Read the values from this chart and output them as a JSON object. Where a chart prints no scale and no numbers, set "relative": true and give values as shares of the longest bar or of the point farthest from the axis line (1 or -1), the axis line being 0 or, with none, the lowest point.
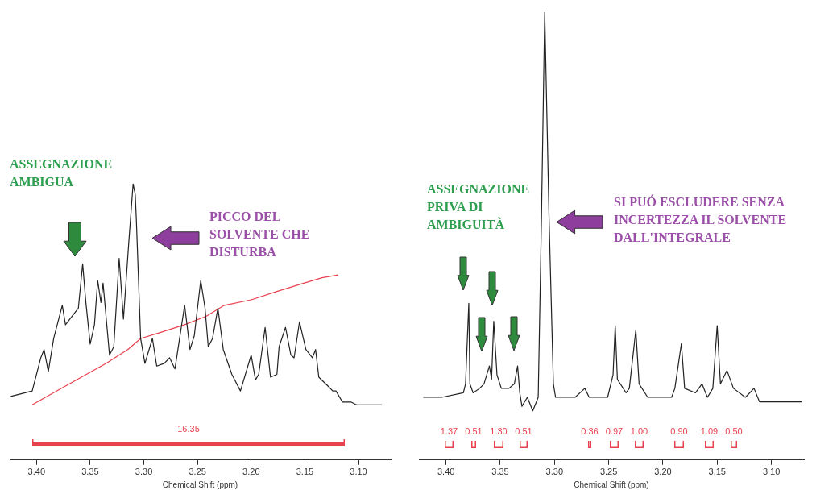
{
  "chart_data": [
    {
      "type": "line",
      "relative": true,
      "xlabel": "Chemical Shift (ppm)",
      "xlim": [
        3.425,
        3.07
      ],
      "xticks": [
        {
          "value": 3.4,
          "label": "3.40"
        },
        {
          "value": 3.35,
          "label": "3.35"
        },
        {
          "value": 3.3,
          "label": "3.30"
        },
        {
          "value": 3.25,
          "label": "3.25"
        },
        {
          "value": 3.2,
          "label": "3.20"
        },
        {
          "value": 3.15,
          "label": "3.15"
        },
        {
          "value": 3.1,
          "label": "3.10"
        }
      ],
      "grid": false,
      "legend": false,
      "marker": "none",
      "annotations": [
        "ASSEGNAZIONE\nAMBIGUA",
        "PICCO DEL\nSOLVENTE CHE\nDISTURBA",
        "16.35"
      ],
      "series": [
        {
          "color": "#222222",
          "x": [
            3.424,
            3.404,
            3.396,
            3.393,
            3.389,
            3.384,
            3.376,
            3.373,
            3.367,
            3.361,
            3.357,
            3.354,
            3.35,
            3.346,
            3.343,
            3.34,
            3.338,
            3.332,
            3.328,
            3.323,
            3.319,
            3.314,
            3.31,
            3.308,
            3.307,
            3.303,
            3.299,
            3.292,
            3.288,
            3.281,
            3.276,
            3.271,
            3.262,
            3.257,
            3.253,
            3.247,
            3.243,
            3.24,
            3.236,
            3.231,
            3.226,
            3.218,
            3.21,
            3.2,
            3.196,
            3.193,
            3.187,
            3.182,
            3.176,
            3.174,
            3.168,
            3.163,
            3.16,
            3.155,
            3.149,
            3.143,
            3.14,
            3.137,
            3.129,
            3.124,
            3.121,
            3.115,
            3.107,
            3.102,
            3.078
          ],
          "values": [
            0.23,
            0.25,
            0.37,
            0.4,
            0.32,
            0.44,
            0.56,
            0.49,
            0.52,
            0.55,
            0.71,
            0.57,
            0.42,
            0.49,
            0.65,
            0.57,
            0.64,
            0.38,
            0.41,
            0.73,
            0.51,
            0.79,
            1,
            0.96,
            0.87,
            0.44,
            0.35,
            0.44,
            0.34,
            0.35,
            0.37,
            0.33,
            0.56,
            0.4,
            0.45,
            0.65,
            0.55,
            0.41,
            0.44,
            0.55,
            0.4,
            0.31,
            0.25,
            0.38,
            0.29,
            0.31,
            0.48,
            0.3,
            0.31,
            0.41,
            0.48,
            0.38,
            0.37,
            0.5,
            0.4,
            0.37,
            0.4,
            0.3,
            0.27,
            0.25,
            0.25,
            0.21,
            0.21,
            0.2,
            0.2
          ]
        },
        {
          "color": "#e8414f",
          "x": [
            3.404,
            3.372,
            3.335,
            3.315,
            3.303,
            3.286,
            3.262,
            3.242,
            3.225,
            3.2,
            3.176,
            3.151,
            3.134,
            3.119
          ],
          "values": [
            0.2,
            0.27,
            0.35,
            0.4,
            0.44,
            0.46,
            0.49,
            0.52,
            0.56,
            0.58,
            0.61,
            0.64,
            0.66,
            0.67
          ]
        }
      ]
    },
    {
      "type": "line",
      "relative": true,
      "xlabel": "Chemical Shift (ppm)",
      "xlim": [
        3.425,
        3.07
      ],
      "xticks": [
        {
          "value": 3.4,
          "label": "3.40"
        },
        {
          "value": 3.35,
          "label": "3.35"
        },
        {
          "value": 3.3,
          "label": "3.30"
        },
        {
          "value": 3.25,
          "label": "3.25"
        },
        {
          "value": 3.2,
          "label": "3.20"
        },
        {
          "value": 3.15,
          "label": "3.15"
        },
        {
          "value": 3.1,
          "label": "3.10"
        }
      ],
      "grid": false,
      "legend": false,
      "marker": "none",
      "annotations": [
        "ASSEGNAZIONE\nPRIVA DI\nAMBIGUITÀ",
        "SI PUÓ ESCLUDERE SENZA\nINCERTEZZA IL SOLVENTE\nDALL'INTEGRALE",
        "1.37",
        "0.51",
        "1.30",
        "0.51",
        "0.36",
        "0.97",
        "1.00",
        "0.90",
        "1.09",
        "0.50"
      ],
      "series": [
        {
          "color": "#222222",
          "x": [
            3.421,
            3.404,
            3.384,
            3.382,
            3.379,
            3.378,
            3.375,
            3.369,
            3.365,
            3.36,
            3.358,
            3.356,
            3.353,
            3.349,
            3.342,
            3.337,
            3.334,
            3.332,
            3.33,
            3.325,
            3.32,
            3.315,
            3.312,
            3.309,
            3.305,
            3.301,
            3.299,
            3.281,
            3.272,
            3.268,
            3.251,
            3.246,
            3.244,
            3.242,
            3.234,
            3.231,
            3.225,
            3.222,
            3.214,
            3.192,
            3.189,
            3.183,
            3.18,
            3.17,
            3.164,
            3.159,
            3.154,
            3.15,
            3.147,
            3.141,
            3.135,
            3.124,
            3.116,
            3.111,
            3.072
          ],
          "values": [
            0.14,
            0.14,
            0.15,
            0.17,
            0.35,
            0.17,
            0.15,
            0.16,
            0.17,
            0.21,
            0.18,
            0.31,
            0.19,
            0.16,
            0.16,
            0.17,
            0.21,
            0.15,
            0.12,
            0.14,
            0.11,
            0.14,
            0.54,
            1,
            0.54,
            0.17,
            0.14,
            0.14,
            0.16,
            0.14,
            0.14,
            0.19,
            0.3,
            0.18,
            0.15,
            0.16,
            0.29,
            0.17,
            0.14,
            0.14,
            0.16,
            0.26,
            0.16,
            0.15,
            0.17,
            0.14,
            0.16,
            0.3,
            0.17,
            0.2,
            0.16,
            0.14,
            0.16,
            0.13,
            0.13
          ]
        }
      ]
    }
  ]
}
